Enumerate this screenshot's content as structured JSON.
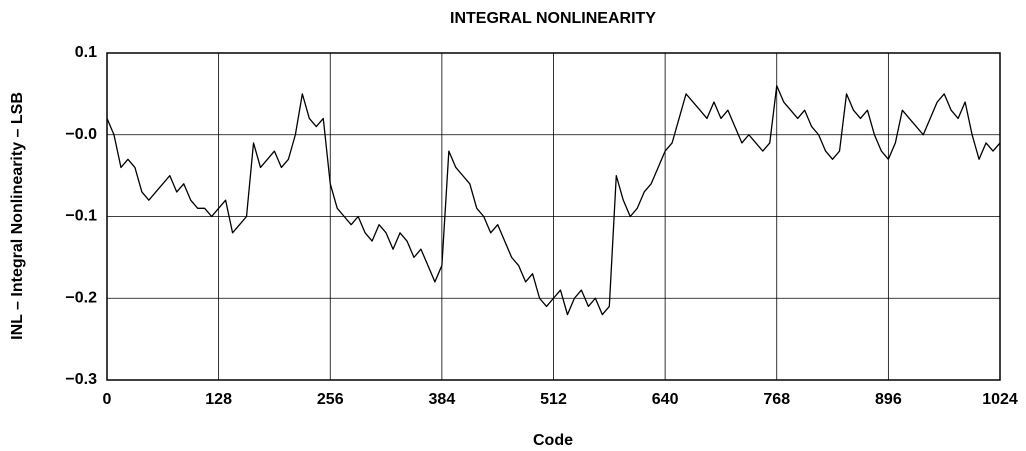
{
  "chart_data": {
    "type": "line",
    "title": "INTEGRAL NONLINEARITY",
    "xlabel": "Code",
    "ylabel": "INL – Integral Nonlinearity – LSB",
    "xlim": [
      0,
      1024
    ],
    "ylim": [
      -0.3,
      0.1
    ],
    "xticks": [
      0,
      128,
      256,
      384,
      512,
      640,
      768,
      896,
      1024
    ],
    "yticks": [
      {
        "value": -0.3,
        "label": "−0.3"
      },
      {
        "value": -0.2,
        "label": "−0.2"
      },
      {
        "value": -0.1,
        "label": "−0.1"
      },
      {
        "value": 0,
        "label": "−0.0"
      },
      0.1
    ],
    "grid": true,
    "series": [
      {
        "color": "#000000",
        "x": [
          0,
          8,
          16,
          24,
          32,
          40,
          48,
          56,
          64,
          72,
          80,
          88,
          96,
          104,
          112,
          120,
          128,
          136,
          144,
          152,
          160,
          168,
          176,
          184,
          192,
          200,
          208,
          216,
          224,
          232,
          240,
          248,
          256,
          264,
          272,
          280,
          288,
          296,
          304,
          312,
          320,
          328,
          336,
          344,
          352,
          360,
          368,
          376,
          384,
          392,
          400,
          408,
          416,
          424,
          432,
          440,
          448,
          456,
          464,
          472,
          480,
          488,
          496,
          504,
          512,
          520,
          528,
          536,
          544,
          552,
          560,
          568,
          576,
          584,
          592,
          600,
          608,
          616,
          624,
          632,
          640,
          648,
          656,
          664,
          672,
          680,
          688,
          696,
          704,
          712,
          720,
          728,
          736,
          744,
          752,
          760,
          768,
          776,
          784,
          792,
          800,
          808,
          816,
          824,
          832,
          840,
          848,
          856,
          864,
          872,
          880,
          888,
          896,
          904,
          912,
          920,
          928,
          936,
          944,
          952,
          960,
          968,
          976,
          984,
          992,
          1000,
          1008,
          1016,
          1024
        ],
        "values": [
          0.02,
          0,
          -0.04,
          -0.03,
          -0.04,
          -0.07,
          -0.08,
          -0.07,
          -0.06,
          -0.05,
          -0.07,
          -0.06,
          -0.08,
          -0.09,
          -0.09,
          -0.1,
          -0.09,
          -0.08,
          -0.12,
          -0.11,
          -0.1,
          -0.01,
          -0.04,
          -0.03,
          -0.02,
          -0.04,
          -0.03,
          0.0,
          0.05,
          0.02,
          0.01,
          0.02,
          -0.06,
          -0.09,
          -0.1,
          -0.11,
          -0.1,
          -0.12,
          -0.13,
          -0.11,
          -0.12,
          -0.14,
          -0.12,
          -0.13,
          -0.15,
          -0.14,
          -0.16,
          -0.18,
          -0.16,
          -0.02,
          -0.04,
          -0.05,
          -0.06,
          -0.09,
          -0.1,
          -0.12,
          -0.11,
          -0.13,
          -0.15,
          -0.16,
          -0.18,
          -0.17,
          -0.2,
          -0.21,
          -0.2,
          -0.19,
          -0.22,
          -0.2,
          -0.19,
          -0.21,
          -0.2,
          -0.22,
          -0.21,
          -0.05,
          -0.08,
          -0.1,
          -0.09,
          -0.07,
          -0.06,
          -0.04,
          -0.02,
          -0.01,
          0.02,
          0.05,
          0.04,
          0.03,
          0.02,
          0.04,
          0.02,
          0.03,
          0.01,
          -0.01,
          0.0,
          -0.01,
          -0.02,
          -0.01,
          0.06,
          0.04,
          0.03,
          0.02,
          0.03,
          0.01,
          0.0,
          -0.02,
          -0.03,
          -0.02,
          0.05,
          0.03,
          0.02,
          0.03,
          0.0,
          -0.02,
          -0.03,
          -0.01,
          0.03,
          0.02,
          0.01,
          0.0,
          0.02,
          0.04,
          0.05,
          0.03,
          0.02,
          0.04,
          0.0,
          -0.03,
          -0.01,
          -0.02,
          -0.01
        ]
      }
    ]
  }
}
